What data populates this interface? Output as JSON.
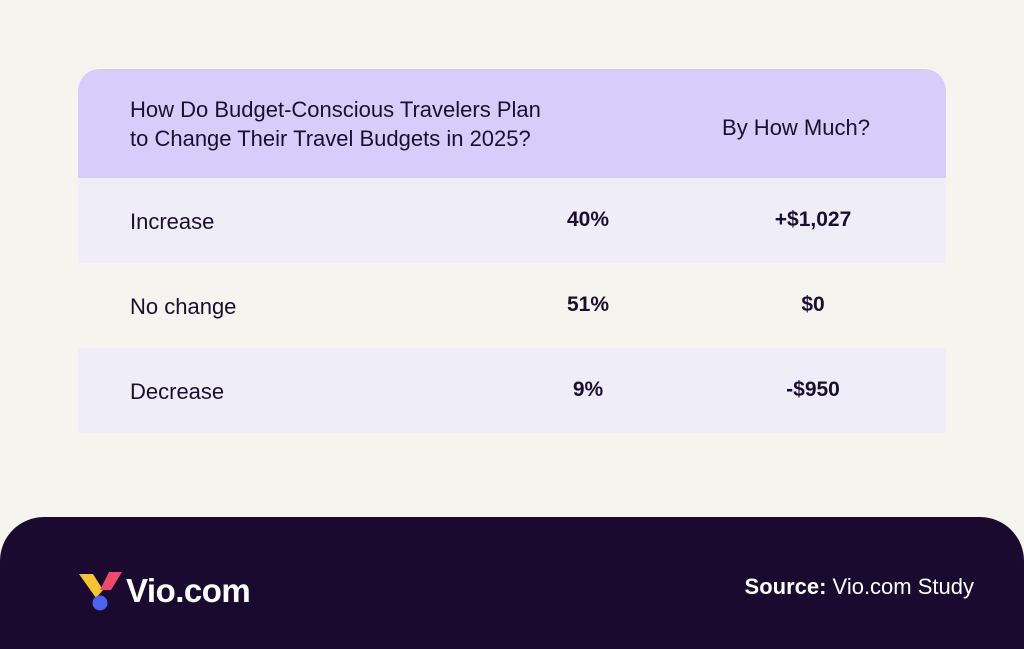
{
  "table": {
    "header": {
      "question_line1": "How Do Budget-Conscious Travelers Plan",
      "question_line2": "to Change Their Travel Budgets in 2025?",
      "amount_heading": "By How Much?"
    },
    "rows": [
      {
        "label": "Increase",
        "percent": "40%",
        "amount": "+$1,027"
      },
      {
        "label": "No change",
        "percent": "51%",
        "amount": "$0"
      },
      {
        "label": "Decrease",
        "percent": "9%",
        "amount": "-$950"
      }
    ]
  },
  "footer": {
    "logo_text": "Vio.com",
    "source_label": "Source:",
    "source_value": " Vio.com Study"
  },
  "colors": {
    "background": "#f6f4ef",
    "header_bg": "#d8cdfa",
    "row_shaded": "#efedf8",
    "footer_bg": "#1a0a2f",
    "logo_yellow": "#f7c331",
    "logo_pink": "#f04a6b",
    "logo_blue": "#4a63f0"
  },
  "icons": {
    "logo_mark": "vio-logo-icon"
  }
}
